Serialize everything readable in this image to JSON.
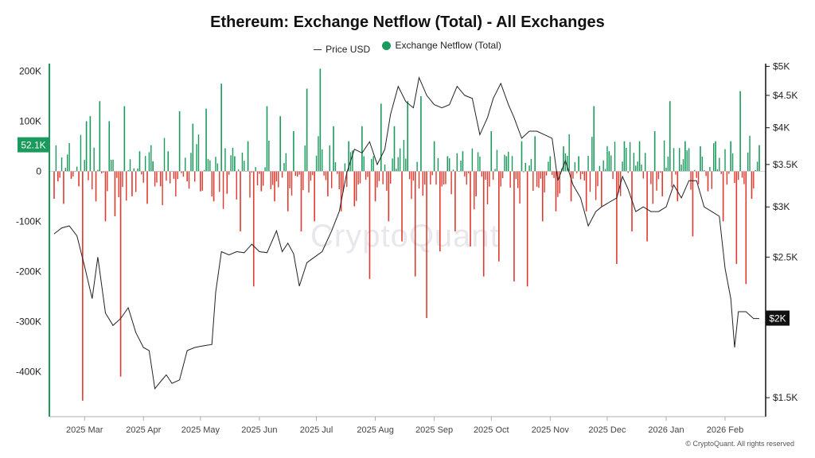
{
  "chart_data": {
    "type": "bar+line",
    "title": "Ethereum: Exchange Netflow (Total) - All Exchanges",
    "legend": [
      {
        "name": "Price USD",
        "style": "line",
        "color": "#333333"
      },
      {
        "name": "Exchange Netflow (Total)",
        "style": "dot",
        "color": "#1a9a5c"
      }
    ],
    "colors": {
      "positive": "#1a9a5c",
      "negative": "#e03a2f",
      "price": "#222222",
      "axis": "#111111"
    },
    "y_left": {
      "ticks": [
        200000,
        100000,
        0,
        -100000,
        -200000,
        -300000,
        -400000
      ],
      "labels": [
        "200K",
        "100K",
        "0",
        "-100K",
        "-200K",
        "-300K",
        "-400K"
      ],
      "range": [
        -490000,
        215000
      ]
    },
    "y_right": {
      "scale": "log",
      "ticks": [
        5000,
        4500,
        4000,
        3500,
        3000,
        2500,
        2000,
        1500
      ],
      "labels": [
        "$5K",
        "$4.5K",
        "$4K",
        "$3.5K",
        "$3K",
        "$2.5K",
        "$2K",
        "$1.5K"
      ],
      "range": [
        1400,
        5050
      ]
    },
    "x_axis": {
      "labels": [
        "2025 Mar",
        "2025 Apr",
        "2025 May",
        "2025 Jun",
        "2025 Jul",
        "2025 Aug",
        "2025 Sep",
        "2025 Oct",
        "2025 Nov",
        "2025 Dec",
        "2026 Jan",
        "2026 Feb"
      ]
    },
    "last_netflow_label": "52.1K",
    "last_price_label": "$2K",
    "series": [
      {
        "name": "Exchange Netflow (Total)",
        "x_start": "2025-02-13",
        "x_end": "2026-02-19",
        "points": [
          [
            "2025-02-13",
            -55000
          ],
          [
            "2025-02-15",
            -20000
          ],
          [
            "2025-02-18",
            -65000
          ],
          [
            "2025-02-22",
            -15000
          ],
          [
            "2025-02-26",
            -30000
          ],
          [
            "2025-02-28",
            -458000
          ],
          [
            "2025-03-02",
            100000
          ],
          [
            "2025-03-04",
            110000
          ],
          [
            "2025-03-07",
            -60000
          ],
          [
            "2025-03-09",
            140000
          ],
          [
            "2025-03-12",
            -100000
          ],
          [
            "2025-03-14",
            100000
          ],
          [
            "2025-03-17",
            -90000
          ],
          [
            "2025-03-20",
            -410000
          ],
          [
            "2025-03-22",
            130000
          ],
          [
            "2025-03-26",
            -50000
          ],
          [
            "2025-03-30",
            40000
          ],
          [
            "2025-04-03",
            -65000
          ],
          [
            "2025-04-06",
            20000
          ],
          [
            "2025-04-10",
            -30000
          ],
          [
            "2025-04-14",
            40000
          ],
          [
            "2025-04-17",
            -15000
          ],
          [
            "2025-04-20",
            120000
          ],
          [
            "2025-04-24",
            -20000
          ],
          [
            "2025-04-27",
            95000
          ],
          [
            "2025-05-01",
            -40000
          ],
          [
            "2025-05-04",
            125000
          ],
          [
            "2025-05-08",
            -60000
          ],
          [
            "2025-05-12",
            175000
          ],
          [
            "2025-05-15",
            -45000
          ],
          [
            "2025-05-19",
            30000
          ],
          [
            "2025-05-22",
            -120000
          ],
          [
            "2025-05-26",
            60000
          ],
          [
            "2025-05-29",
            -230000
          ],
          [
            "2025-06-02",
            -40000
          ],
          [
            "2025-06-05",
            130000
          ],
          [
            "2025-06-09",
            -60000
          ],
          [
            "2025-06-12",
            110000
          ],
          [
            "2025-06-16",
            -80000
          ],
          [
            "2025-06-19",
            80000
          ],
          [
            "2025-06-23",
            -120000
          ],
          [
            "2025-06-26",
            165000
          ],
          [
            "2025-06-30",
            -100000
          ],
          [
            "2025-07-03",
            205000
          ],
          [
            "2025-07-07",
            -50000
          ],
          [
            "2025-07-10",
            90000
          ],
          [
            "2025-07-14",
            -80000
          ],
          [
            "2025-07-18",
            60000
          ],
          [
            "2025-07-21",
            -70000
          ],
          [
            "2025-07-25",
            90000
          ],
          [
            "2025-07-29",
            -215000
          ],
          [
            "2025-08-01",
            -60000
          ],
          [
            "2025-08-04",
            135000
          ],
          [
            "2025-08-08",
            -100000
          ],
          [
            "2025-08-11",
            90000
          ],
          [
            "2025-08-15",
            -140000
          ],
          [
            "2025-08-18",
            140000
          ],
          [
            "2025-08-22",
            -210000
          ],
          [
            "2025-08-25",
            150000
          ],
          [
            "2025-08-28",
            -293000
          ],
          [
            "2025-09-01",
            60000
          ],
          [
            "2025-09-04",
            -160000
          ],
          [
            "2025-09-08",
            30000
          ],
          [
            "2025-09-12",
            -120000
          ],
          [
            "2025-09-16",
            40000
          ],
          [
            "2025-09-20",
            -150000
          ],
          [
            "2025-09-23",
            -50000
          ],
          [
            "2025-09-27",
            -210000
          ],
          [
            "2025-10-01",
            80000
          ],
          [
            "2025-10-05",
            -180000
          ],
          [
            "2025-10-09",
            30000
          ],
          [
            "2025-10-13",
            -220000
          ],
          [
            "2025-10-17",
            60000
          ],
          [
            "2025-10-20",
            -230000
          ],
          [
            "2025-10-24",
            70000
          ],
          [
            "2025-10-28",
            -100000
          ],
          [
            "2025-11-01",
            30000
          ],
          [
            "2025-11-04",
            -80000
          ],
          [
            "2025-11-08",
            50000
          ],
          [
            "2025-11-12",
            -60000
          ],
          [
            "2025-11-16",
            30000
          ],
          [
            "2025-11-20",
            -80000
          ],
          [
            "2025-11-24",
            130000
          ],
          [
            "2025-11-28",
            -70000
          ],
          [
            "2025-12-02",
            40000
          ],
          [
            "2025-12-06",
            -185000
          ],
          [
            "2025-12-10",
            60000
          ],
          [
            "2025-12-14",
            -120000
          ],
          [
            "2025-12-18",
            60000
          ],
          [
            "2025-12-22",
            -140000
          ],
          [
            "2025-12-26",
            80000
          ],
          [
            "2025-12-30",
            -50000
          ],
          [
            "2026-01-03",
            140000
          ],
          [
            "2026-01-07",
            -60000
          ],
          [
            "2026-01-11",
            60000
          ],
          [
            "2026-01-15",
            -130000
          ],
          [
            "2026-01-19",
            50000
          ],
          [
            "2026-01-23",
            -40000
          ],
          [
            "2026-01-27",
            60000
          ],
          [
            "2026-01-31",
            -100000
          ],
          [
            "2026-02-04",
            60000
          ],
          [
            "2026-02-07",
            -185000
          ],
          [
            "2026-02-09",
            160000
          ],
          [
            "2026-02-12",
            -225000
          ],
          [
            "2026-02-15",
            -55000
          ],
          [
            "2026-02-19",
            52100
          ]
        ]
      },
      {
        "name": "Price USD",
        "x_start": "2025-02-13",
        "x_end": "2026-02-19",
        "points": [
          [
            "2025-02-13",
            2720
          ],
          [
            "2025-02-17",
            2780
          ],
          [
            "2025-02-21",
            2800
          ],
          [
            "2025-02-25",
            2700
          ],
          [
            "2025-03-01",
            2420
          ],
          [
            "2025-03-05",
            2150
          ],
          [
            "2025-03-08",
            2500
          ],
          [
            "2025-03-12",
            2040
          ],
          [
            "2025-03-16",
            1950
          ],
          [
            "2025-03-20",
            2000
          ],
          [
            "2025-03-24",
            2080
          ],
          [
            "2025-03-28",
            1900
          ],
          [
            "2025-04-01",
            1800
          ],
          [
            "2025-04-04",
            1780
          ],
          [
            "2025-04-07",
            1550
          ],
          [
            "2025-04-10",
            1590
          ],
          [
            "2025-04-13",
            1630
          ],
          [
            "2025-04-16",
            1580
          ],
          [
            "2025-04-20",
            1600
          ],
          [
            "2025-04-24",
            1780
          ],
          [
            "2025-04-28",
            1800
          ],
          [
            "2025-05-02",
            1810
          ],
          [
            "2025-05-07",
            1820
          ],
          [
            "2025-05-09",
            2200
          ],
          [
            "2025-05-12",
            2550
          ],
          [
            "2025-05-16",
            2520
          ],
          [
            "2025-05-20",
            2550
          ],
          [
            "2025-05-24",
            2540
          ],
          [
            "2025-05-28",
            2620
          ],
          [
            "2025-06-01",
            2550
          ],
          [
            "2025-06-05",
            2540
          ],
          [
            "2025-06-10",
            2750
          ],
          [
            "2025-06-13",
            2550
          ],
          [
            "2025-06-16",
            2630
          ],
          [
            "2025-06-19",
            2530
          ],
          [
            "2025-06-22",
            2250
          ],
          [
            "2025-06-26",
            2450
          ],
          [
            "2025-06-30",
            2500
          ],
          [
            "2025-07-04",
            2550
          ],
          [
            "2025-07-09",
            2750
          ],
          [
            "2025-07-13",
            2950
          ],
          [
            "2025-07-17",
            3400
          ],
          [
            "2025-07-21",
            3700
          ],
          [
            "2025-07-25",
            3650
          ],
          [
            "2025-07-29",
            3800
          ],
          [
            "2025-08-02",
            3500
          ],
          [
            "2025-08-06",
            3700
          ],
          [
            "2025-08-09",
            4200
          ],
          [
            "2025-08-13",
            4650
          ],
          [
            "2025-08-17",
            4400
          ],
          [
            "2025-08-21",
            4300
          ],
          [
            "2025-08-24",
            4800
          ],
          [
            "2025-08-28",
            4500
          ],
          [
            "2025-09-01",
            4350
          ],
          [
            "2025-09-05",
            4300
          ],
          [
            "2025-09-09",
            4350
          ],
          [
            "2025-09-13",
            4650
          ],
          [
            "2025-09-17",
            4500
          ],
          [
            "2025-09-21",
            4450
          ],
          [
            "2025-09-25",
            3900
          ],
          [
            "2025-09-29",
            4150
          ],
          [
            "2025-10-02",
            4450
          ],
          [
            "2025-10-06",
            4700
          ],
          [
            "2025-10-10",
            4350
          ],
          [
            "2025-10-13",
            4150
          ],
          [
            "2025-10-17",
            3850
          ],
          [
            "2025-10-21",
            3950
          ],
          [
            "2025-10-25",
            3950
          ],
          [
            "2025-10-29",
            3900
          ],
          [
            "2025-11-02",
            3850
          ],
          [
            "2025-11-05",
            3300
          ],
          [
            "2025-11-09",
            3550
          ],
          [
            "2025-11-13",
            3250
          ],
          [
            "2025-11-17",
            3100
          ],
          [
            "2025-11-21",
            2800
          ],
          [
            "2025-11-25",
            2950
          ],
          [
            "2025-11-28",
            3000
          ],
          [
            "2025-12-02",
            3050
          ],
          [
            "2025-12-06",
            3100
          ],
          [
            "2025-12-09",
            3350
          ],
          [
            "2025-12-12",
            3200
          ],
          [
            "2025-12-16",
            2950
          ],
          [
            "2025-12-20",
            3000
          ],
          [
            "2025-12-24",
            2950
          ],
          [
            "2025-12-28",
            2950
          ],
          [
            "2026-01-01",
            3000
          ],
          [
            "2026-01-05",
            3250
          ],
          [
            "2026-01-09",
            3100
          ],
          [
            "2026-01-13",
            3300
          ],
          [
            "2026-01-17",
            3300
          ],
          [
            "2026-01-21",
            3000
          ],
          [
            "2026-01-25",
            2950
          ],
          [
            "2026-01-29",
            2900
          ],
          [
            "2026-02-01",
            2400
          ],
          [
            "2026-02-04",
            2150
          ],
          [
            "2026-02-06",
            1800
          ],
          [
            "2026-02-08",
            2050
          ],
          [
            "2026-02-12",
            2050
          ],
          [
            "2026-02-16",
            2000
          ],
          [
            "2026-02-19",
            2000
          ]
        ]
      }
    ]
  },
  "copyright": "© CryptoQuant. All rights reserved",
  "watermark": "CryptoQuant"
}
